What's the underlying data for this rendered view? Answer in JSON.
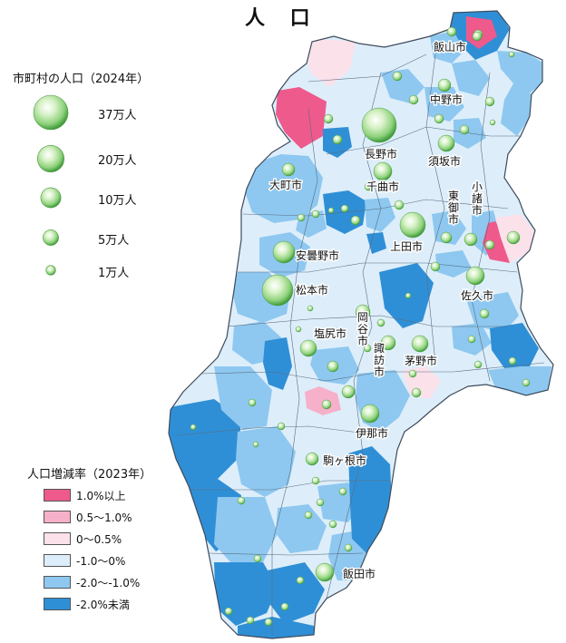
{
  "title": "人 口",
  "population_legend": {
    "title": "市町村の人口（2024年）",
    "items": [
      {
        "label": "37万人",
        "value": 370000
      },
      {
        "label": "20万人",
        "value": 200000
      },
      {
        "label": "10万人",
        "value": 100000
      },
      {
        "label": "5万人",
        "value": 50000
      },
      {
        "label": "1万人",
        "value": 10000
      }
    ]
  },
  "rate_legend": {
    "title": "人口増減率（2023年）",
    "items": [
      {
        "label": "1.0%以上",
        "color": "#ee5a8c"
      },
      {
        "label": "0.5～1.0%",
        "color": "#f7b0c9"
      },
      {
        "label": "0～0.5%",
        "color": "#fbe1ea"
      },
      {
        "label": "-1.0～0%",
        "color": "#ddeefa"
      },
      {
        "label": "-2.0～-1.0%",
        "color": "#8ec8f0"
      },
      {
        "label": "-2.0%未満",
        "color": "#2f8fd6"
      }
    ]
  },
  "cities": [
    {
      "name": "飯山市",
      "vertical": false
    },
    {
      "name": "中野市",
      "vertical": false
    },
    {
      "name": "長野市",
      "vertical": false
    },
    {
      "name": "須坂市",
      "vertical": false
    },
    {
      "name": "大町市",
      "vertical": false
    },
    {
      "name": "千曲市",
      "vertical": false
    },
    {
      "name": "東御市",
      "vertical": true
    },
    {
      "name": "小諸市",
      "vertical": true
    },
    {
      "name": "上田市",
      "vertical": false
    },
    {
      "name": "安曇野市",
      "vertical": false
    },
    {
      "name": "松本市",
      "vertical": false
    },
    {
      "name": "佐久市",
      "vertical": false
    },
    {
      "name": "塩尻市",
      "vertical": false
    },
    {
      "name": "岡谷市",
      "vertical": true
    },
    {
      "name": "諏訪市",
      "vertical": true
    },
    {
      "name": "茅野市",
      "vertical": false
    },
    {
      "name": "伊那市",
      "vertical": false
    },
    {
      "name": "駒ヶ根市",
      "vertical": false
    },
    {
      "name": "飯田市",
      "vertical": false
    }
  ],
  "colors": {
    "border": "#5a6c80",
    "outline": "#3d4b5c"
  }
}
